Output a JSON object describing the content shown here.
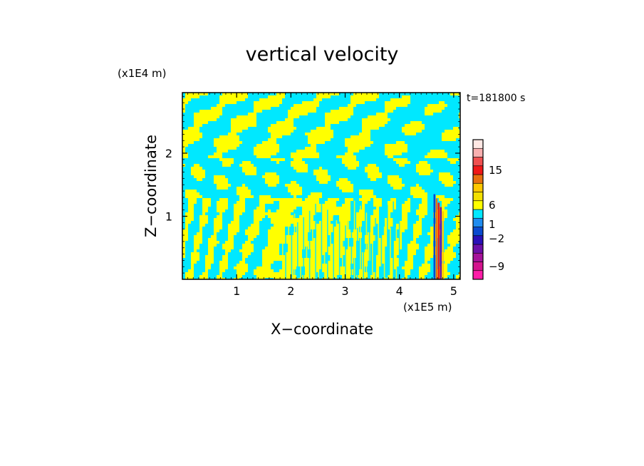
{
  "chart_data": {
    "type": "heatmap",
    "title": "vertical velocity",
    "xlabel": "X−coordinate",
    "ylabel": "Z−coordinate",
    "x_unit": "(x1E5 m)",
    "y_unit": "(x1E4 m)",
    "time_label": "t=181800 s",
    "xlim": [
      0,
      5.12
    ],
    "ylim": [
      0,
      2.96
    ],
    "x_ticks": [
      1,
      2,
      3,
      4,
      5
    ],
    "y_ticks": [
      1,
      2
    ],
    "colorbar": {
      "levels": [
        {
          "color": "#ff1ca8"
        },
        {
          "color": "#d4148e"
        },
        {
          "color": "#a6129a"
        },
        {
          "color": "#6c0fa8"
        },
        {
          "color": "#2a10b8"
        },
        {
          "color": "#0a4ad0"
        },
        {
          "color": "#1e8cf0"
        },
        {
          "color": "#00e8ff"
        },
        {
          "color": "#ffff00"
        },
        {
          "color": "#f4e000"
        },
        {
          "color": "#ffc800"
        },
        {
          "color": "#e87010"
        },
        {
          "color": "#f01818"
        },
        {
          "color": "#f05050"
        },
        {
          "color": "#f8b0b0"
        },
        {
          "color": "#ffe8e4"
        }
      ],
      "tick_labels": [
        "15",
        "6",
        "1",
        "−2",
        "−9"
      ]
    },
    "field_colors": {
      "negative": "#00e8ff",
      "positive": "#ffff00"
    },
    "plume": {
      "x_center": 4.72,
      "z_top": 1.35
    }
  }
}
